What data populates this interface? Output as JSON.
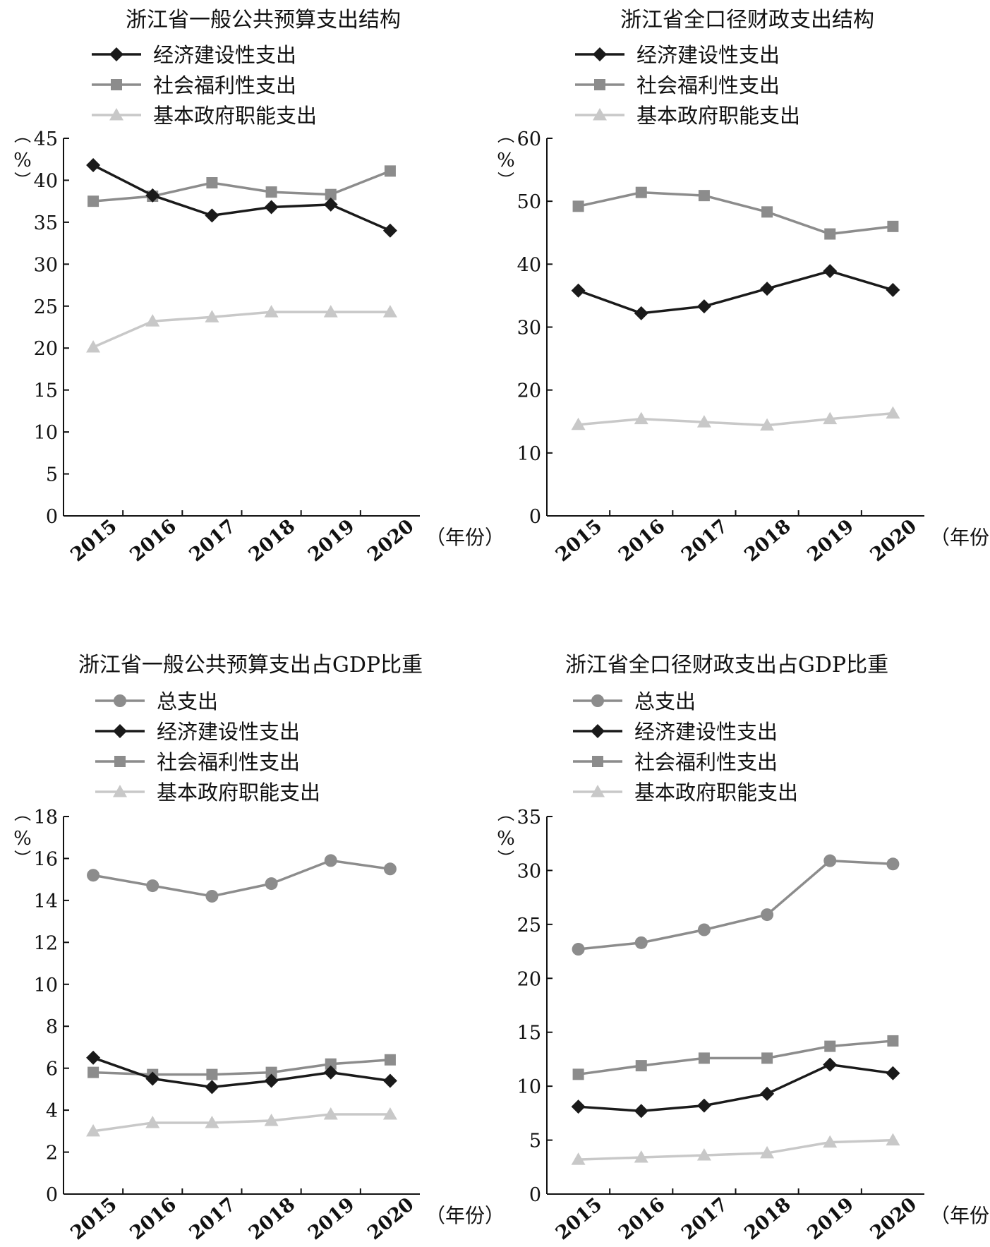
{
  "chart_data": [
    {
      "type": "line",
      "title": "浙江省一般公共预算支出结构",
      "ylabel": "%",
      "xlabel": "（年份）",
      "categories": [
        "2015",
        "2016",
        "2017",
        "2018",
        "2019",
        "2020"
      ],
      "ylim": [
        0,
        45
      ],
      "yticks": [
        0,
        5,
        10,
        15,
        20,
        25,
        30,
        35,
        40,
        45
      ],
      "legend": "top-left",
      "series": [
        {
          "name": "经济建设性支出",
          "marker": "diamond",
          "color": "#1a1a1a",
          "values": [
            41.8,
            38.2,
            35.8,
            36.8,
            37.1,
            34.0
          ]
        },
        {
          "name": "社会福利性支出",
          "marker": "square",
          "color": "#8c8c8c",
          "values": [
            37.5,
            38.1,
            39.7,
            38.6,
            38.3,
            41.1
          ]
        },
        {
          "name": "基本政府职能支出",
          "marker": "triangle",
          "color": "#c8c8c8",
          "values": [
            20.1,
            23.2,
            23.7,
            24.3,
            24.3,
            24.3
          ]
        }
      ]
    },
    {
      "type": "line",
      "title": "浙江省全口径财政支出结构",
      "ylabel": "%",
      "xlabel": "（年份）",
      "categories": [
        "2015",
        "2016",
        "2017",
        "2018",
        "2019",
        "2020"
      ],
      "ylim": [
        0,
        60
      ],
      "yticks": [
        0,
        10,
        20,
        30,
        40,
        50,
        60
      ],
      "legend": "top-left",
      "series": [
        {
          "name": "经济建设性支出",
          "marker": "diamond",
          "color": "#1a1a1a",
          "values": [
            35.8,
            32.2,
            33.3,
            36.1,
            38.9,
            35.9
          ]
        },
        {
          "name": "社会福利性支出",
          "marker": "square",
          "color": "#8c8c8c",
          "values": [
            49.2,
            51.4,
            50.9,
            48.3,
            44.8,
            46.0
          ]
        },
        {
          "name": "基本政府职能支出",
          "marker": "triangle",
          "color": "#c8c8c8",
          "values": [
            14.5,
            15.4,
            14.9,
            14.4,
            15.4,
            16.3
          ]
        }
      ]
    },
    {
      "type": "line",
      "title": "浙江省一般公共预算支出占GDP比重",
      "ylabel": "%",
      "xlabel": "（年份）",
      "categories": [
        "2015",
        "2016",
        "2017",
        "2018",
        "2019",
        "2020"
      ],
      "ylim": [
        0,
        18
      ],
      "yticks": [
        0,
        2,
        4,
        6,
        8,
        10,
        12,
        14,
        16,
        18
      ],
      "legend": "top-left",
      "series": [
        {
          "name": "总支出",
          "marker": "circle",
          "color": "#8c8c8c",
          "values": [
            15.2,
            14.7,
            14.2,
            14.8,
            15.9,
            15.5
          ]
        },
        {
          "name": "经济建设性支出",
          "marker": "diamond",
          "color": "#1a1a1a",
          "values": [
            6.5,
            5.5,
            5.1,
            5.4,
            5.8,
            5.4
          ]
        },
        {
          "name": "社会福利性支出",
          "marker": "square",
          "color": "#8c8c8c",
          "values": [
            5.8,
            5.7,
            5.7,
            5.8,
            6.2,
            6.4
          ]
        },
        {
          "name": "基本政府职能支出",
          "marker": "triangle",
          "color": "#c8c8c8",
          "values": [
            3.0,
            3.4,
            3.4,
            3.5,
            3.8,
            3.8
          ]
        }
      ]
    },
    {
      "type": "line",
      "title": "浙江省全口径财政支出占GDP比重",
      "ylabel": "%",
      "xlabel": "（年份）",
      "categories": [
        "2015",
        "2016",
        "2017",
        "2018",
        "2019",
        "2020"
      ],
      "ylim": [
        0,
        35
      ],
      "yticks": [
        0,
        5,
        10,
        15,
        20,
        25,
        30,
        35
      ],
      "legend": "top-left",
      "series": [
        {
          "name": "总支出",
          "marker": "circle",
          "color": "#8c8c8c",
          "values": [
            22.7,
            23.3,
            24.5,
            25.9,
            30.9,
            30.6
          ]
        },
        {
          "name": "经济建设性支出",
          "marker": "diamond",
          "color": "#1a1a1a",
          "values": [
            8.1,
            7.7,
            8.2,
            9.3,
            12.0,
            11.2
          ]
        },
        {
          "name": "社会福利性支出",
          "marker": "square",
          "color": "#8c8c8c",
          "values": [
            11.1,
            11.9,
            12.6,
            12.6,
            13.7,
            14.2
          ]
        },
        {
          "name": "基本政府职能支出",
          "marker": "triangle",
          "color": "#c8c8c8",
          "values": [
            3.2,
            3.4,
            3.6,
            3.8,
            4.8,
            5.0
          ]
        }
      ]
    }
  ]
}
